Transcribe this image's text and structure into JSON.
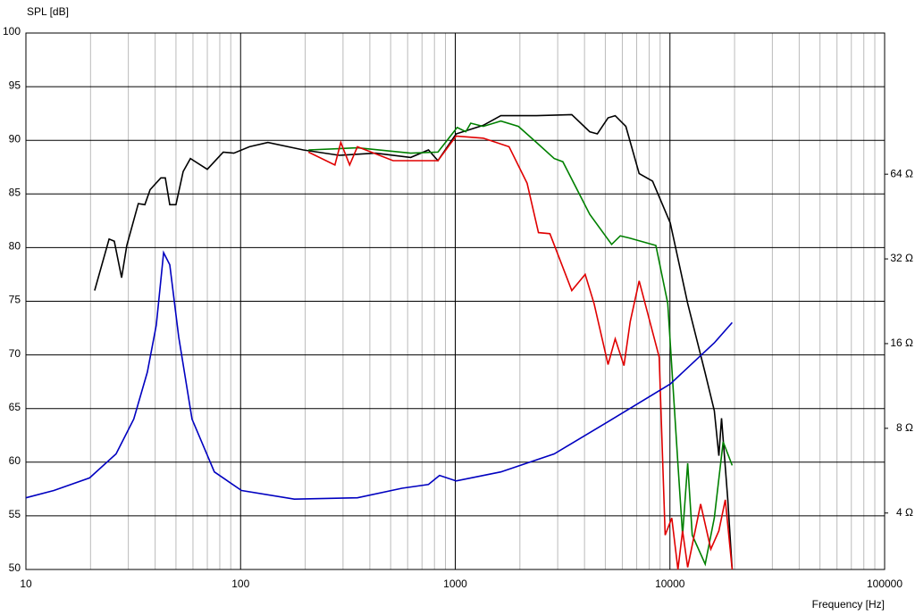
{
  "chart_data": {
    "type": "line",
    "y_label": "SPL [dB]",
    "x_label": "Frequency [Hz]",
    "xscale": "log",
    "y2scale": "log",
    "grid": true,
    "xlim": [
      10,
      100000
    ],
    "xticks": [
      10,
      100,
      1000,
      10000,
      100000
    ],
    "xminorticks": [
      20,
      30,
      40,
      50,
      60,
      70,
      80,
      90,
      200,
      300,
      400,
      500,
      600,
      700,
      800,
      900,
      2000,
      3000,
      4000,
      5000,
      6000,
      7000,
      8000,
      9000,
      20000,
      30000,
      40000,
      50000,
      60000,
      70000,
      80000,
      90000
    ],
    "ylim": [
      50,
      100
    ],
    "yticks": [
      50,
      55,
      60,
      65,
      70,
      75,
      80,
      85,
      90,
      95,
      100
    ],
    "y2lim": [
      2.52,
      203.2
    ],
    "y2ticks": [
      {
        "value": 4,
        "label": "4 Ω"
      },
      {
        "value": 8,
        "label": "8 Ω"
      },
      {
        "value": 16,
        "label": "16 Ω"
      },
      {
        "value": 32,
        "label": "32 Ω"
      },
      {
        "value": 64,
        "label": "64 Ω"
      }
    ],
    "series": [
      {
        "color": "#000000",
        "x": [
          20.9,
          24.4,
          25.8,
          27.9,
          29.5,
          33.4,
          35.8,
          37.9,
          42.5,
          44.6,
          46.8,
          50,
          54,
          58.4,
          70,
          83,
          93,
          110,
          134,
          196,
          288,
          425,
          620,
          750,
          830,
          1010,
          1350,
          1630,
          2390,
          3490,
          4230,
          4590,
          5150,
          5560,
          6230,
          7190,
          8300,
          10030,
          12100,
          14600,
          16100,
          16900,
          17400,
          18600,
          19500
        ],
        "values": [
          76,
          80.8,
          80.6,
          77.2,
          80.2,
          84.1,
          84,
          85.4,
          86.5,
          86.5,
          84,
          84,
          87.1,
          88.3,
          87.3,
          88.9,
          88.8,
          89.4,
          89.8,
          89.1,
          88.6,
          88.8,
          88.4,
          89.1,
          88.1,
          90.6,
          91.4,
          92.3,
          92.3,
          92.4,
          90.8,
          90.6,
          92.1,
          92.3,
          91.3,
          86.9,
          86.2,
          82.3,
          74.8,
          68.3,
          64.8,
          60.6,
          64.1,
          56.5,
          50
        ]
      },
      {
        "color": "#008000",
        "x": [
          207,
          350,
          620,
          830,
          1020,
          1120,
          1180,
          1350,
          1630,
          1970,
          2390,
          2890,
          3170,
          4230,
          5350,
          5870,
          6460,
          8600,
          9770,
          10900,
          11450,
          12100,
          12700,
          14600,
          16100,
          17700,
          19500
        ],
        "values": [
          89.1,
          89.3,
          88.8,
          88.9,
          91.2,
          90.8,
          91.6,
          91.3,
          91.8,
          91.3,
          89.8,
          88.3,
          88,
          83.1,
          80.3,
          81.1,
          80.9,
          80.2,
          74.8,
          59.8,
          53.2,
          59.9,
          53.2,
          50.5,
          54.8,
          61.9,
          59.7
        ]
      },
      {
        "color": "#e00000",
        "x": [
          207,
          275,
          293,
          322,
          350,
          513,
          830,
          1010,
          1350,
          1780,
          2160,
          2440,
          2760,
          3490,
          4030,
          4430,
          5150,
          5560,
          6110,
          6530,
          7190,
          8910,
          9500,
          10200,
          10900,
          11450,
          12100,
          13900,
          15500,
          16900,
          18100,
          19500
        ],
        "values": [
          88.9,
          87.7,
          89.8,
          87.7,
          89.4,
          88.1,
          88.1,
          90.4,
          90.2,
          89.4,
          86,
          81.4,
          81.3,
          76,
          77.5,
          74.8,
          69.1,
          71.5,
          69,
          73.1,
          76.9,
          69.8,
          53.2,
          54.8,
          50,
          53.6,
          50.2,
          56.1,
          51.9,
          53.6,
          56.5,
          50
        ]
      },
      {
        "color": "#0000c0",
        "axis": "y2",
        "x": [
          10,
          13.5,
          19.8,
          26.3,
          31.8,
          36.8,
          40.5,
          43.8,
          46.8,
          51.5,
          59.4,
          75.5,
          101,
          178,
          350,
          565,
          750,
          845,
          1010,
          1630,
          2890,
          5150,
          10030,
          16100,
          19500
        ],
        "values": [
          4.53,
          4.81,
          5.33,
          6.49,
          8.63,
          12.67,
          18.6,
          33.7,
          30.5,
          16.9,
          8.63,
          5.6,
          4.81,
          4.48,
          4.53,
          4.9,
          5.05,
          5.44,
          5.2,
          5.6,
          6.49,
          8.45,
          11.5,
          16.1,
          19.0
        ]
      }
    ]
  }
}
